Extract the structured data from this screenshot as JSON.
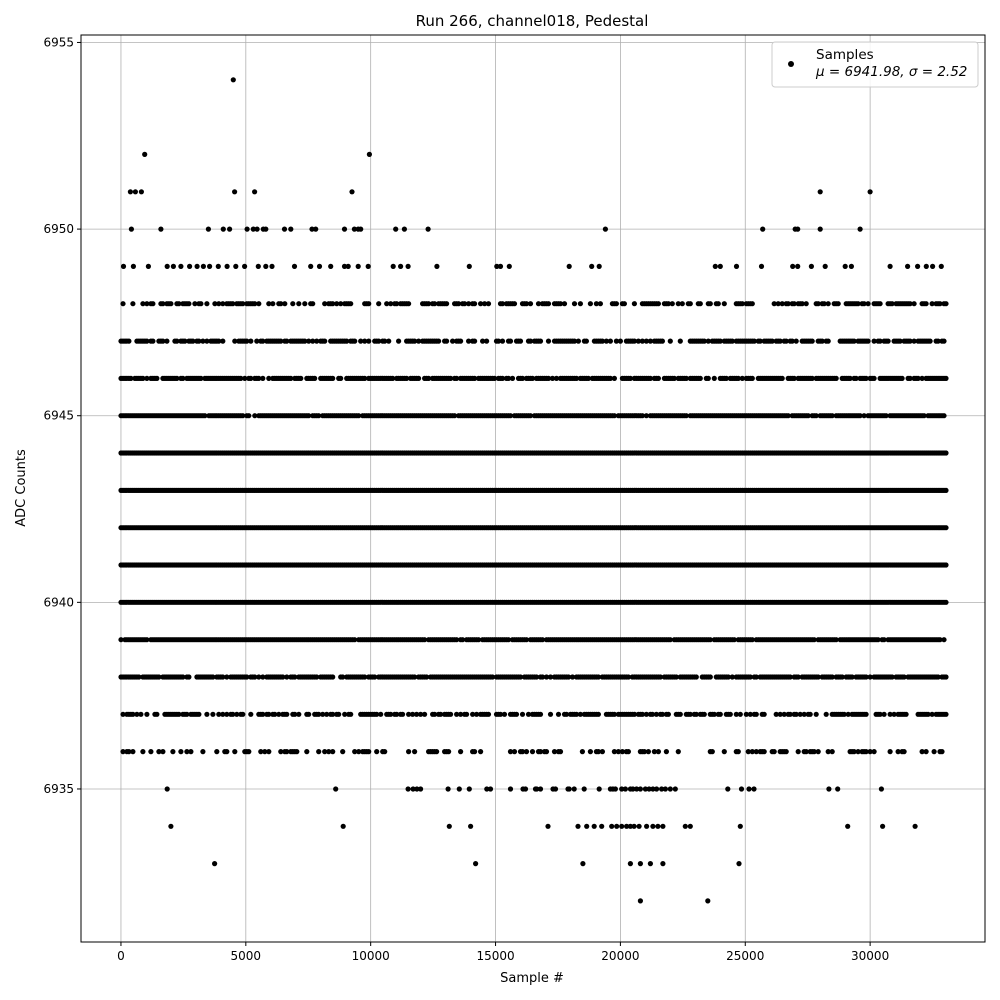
{
  "chart_data": {
    "type": "scatter",
    "title": "Run 266, channel018, Pedestal",
    "xlabel": "Sample #",
    "ylabel": "ADC Counts",
    "xlim": [
      -1600,
      34600
    ],
    "ylim": [
      6930.9,
      6955.2
    ],
    "xticks": [
      0,
      5000,
      10000,
      15000,
      20000,
      25000,
      30000
    ],
    "xtick_labels": [
      "0",
      "5000",
      "10000",
      "15000",
      "20000",
      "25000",
      "30000"
    ],
    "yticks": [
      6935,
      6940,
      6945,
      6950,
      6955
    ],
    "ytick_labels": [
      "6935",
      "6940",
      "6945",
      "6950",
      "6955"
    ],
    "grid": true,
    "legend_position": "top-right",
    "marker_color": "#000000",
    "series": [
      {
        "name": "Samples",
        "stats_label": "μ = 6941.98, σ = 2.52",
        "mean": 6941.98,
        "sigma": 2.52,
        "n_samples": 33150,
        "levels": [
          {
            "y": 6954,
            "x": [
              4500
            ]
          },
          {
            "y": 6952,
            "x": [
              950,
              9950
            ]
          },
          {
            "y": 6951,
            "x": [
              380,
              580,
              820,
              4550,
              5350,
              9250,
              28000,
              30000
            ]
          },
          {
            "y": 6950,
            "x": [
              420,
              1600,
              3500,
              4100,
              4350,
              5050,
              5300,
              5450,
              5700,
              5800,
              6550,
              6800,
              7650,
              7800,
              8950,
              9350,
              9500,
              9600,
              11000,
              11350,
              12300,
              19400,
              25700,
              27000,
              27100,
              28000,
              29600
            ]
          },
          {
            "y": 6949,
            "x": [
              100,
              500,
              1100,
              1850,
              2100,
              2400,
              2750,
              3050,
              3300,
              3550,
              3900,
              4250,
              4600,
              4950,
              5500,
              5800,
              6050,
              6950,
              7600,
              7950,
              8400,
              8950,
              9100,
              9500,
              9900,
              10900,
              11200,
              11500,
              12650,
              13950,
              15050,
              15200,
              15550,
              17950,
              18850,
              19150,
              23800,
              24000,
              24650,
              25650,
              26900,
              27100,
              27650,
              28200,
              29000,
              29250,
              30800,
              31500,
              31900,
              32250,
              32500,
              32850
            ]
          }
        ],
        "bands": [
          {
            "y": 6948,
            "range": [
              0,
              33100
            ],
            "density": 0.5
          },
          {
            "y": 6947,
            "range": [
              0,
              33100
            ],
            "density": 0.65
          },
          {
            "y": 6946,
            "range": [
              0,
              33100
            ],
            "density": 0.8
          },
          {
            "y": 6945,
            "range": [
              0,
              33100
            ],
            "density": 0.95
          },
          {
            "y": 6944,
            "range": [
              0,
              33100
            ],
            "density": 1.0
          },
          {
            "y": 6943,
            "range": [
              0,
              33100
            ],
            "density": 1.0
          },
          {
            "y": 6942,
            "range": [
              0,
              33100
            ],
            "density": 1.0
          },
          {
            "y": 6941,
            "range": [
              0,
              33100
            ],
            "density": 1.0
          },
          {
            "y": 6940,
            "range": [
              0,
              33100
            ],
            "density": 1.0
          },
          {
            "y": 6939,
            "range": [
              0,
              33100
            ],
            "density": 0.95
          },
          {
            "y": 6938,
            "range": [
              0,
              33100
            ],
            "density": 0.85
          },
          {
            "y": 6937,
            "range": [
              0,
              33100
            ],
            "density": 0.6
          },
          {
            "y": 6936,
            "range": [
              0,
              33100
            ],
            "density": 0.3
          }
        ],
        "sparse_levels": [
          {
            "y": 6935,
            "x": [
              1850,
              8600,
              11500,
              11700,
              11850,
              12000,
              13100,
              13550,
              13950,
              14650,
              14800,
              15600,
              16100,
              16200,
              16600,
              16650,
              16800,
              17300,
              17400,
              17900,
              17950,
              18150,
              18550,
              19150,
              19600,
              19700,
              19800,
              20050,
              20200,
              20400,
              20500,
              20650,
              20800,
              21000,
              21150,
              21300,
              21450,
              21650,
              21800,
              22000,
              22200,
              24300,
              24850,
              25150,
              25350,
              28350,
              28700,
              30450
            ]
          },
          {
            "y": 6934,
            "x": [
              2000,
              8900,
              13150,
              14000,
              17100,
              18300,
              18650,
              18950,
              19250,
              19650,
              19850,
              20050,
              20250,
              20400,
              20550,
              20750,
              21050,
              21300,
              21500,
              21700,
              22600,
              22800,
              24800,
              29100,
              30500,
              31800
            ]
          },
          {
            "y": 6933,
            "x": [
              3750,
              14200,
              18500,
              20400,
              20800,
              21200,
              21700,
              24750
            ]
          },
          {
            "y": 6932,
            "x": [
              20800,
              23500
            ]
          }
        ]
      }
    ]
  }
}
